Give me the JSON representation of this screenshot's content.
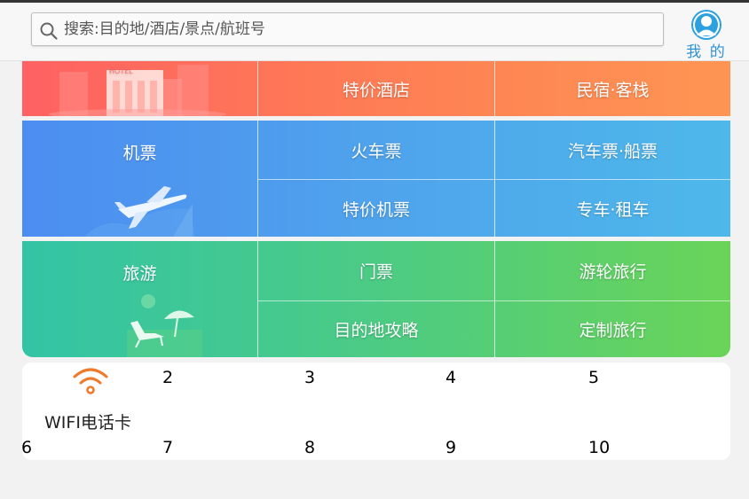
{
  "header": {
    "search_placeholder": "搜索:目的地/酒店/景点/航班号",
    "me_label": "我 的"
  },
  "grid": {
    "hotel": {
      "icon_text": "HOTEL",
      "cells": [
        "特价酒店",
        "民宿·客栈"
      ]
    },
    "flight": {
      "main": "机票",
      "cells": [
        "火车票",
        "汽车票·船票",
        "特价机票",
        "专车·租车"
      ]
    },
    "travel": {
      "main": "旅游",
      "cells": [
        "门票",
        "游轮旅行",
        "目的地攻略",
        "定制旅行"
      ]
    }
  },
  "secondary": {
    "wifi_label": "WIFI电话卡",
    "numbers": [
      "2",
      "3",
      "4",
      "5",
      "6",
      "7",
      "8",
      "9",
      "10"
    ],
    "wifi_color": "#f07a2c"
  }
}
